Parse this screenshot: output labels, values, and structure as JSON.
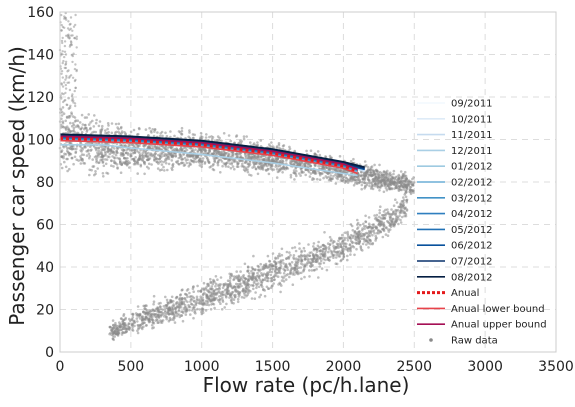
{
  "chart_data": {
    "type": "scatter",
    "title": "",
    "xlabel": "Flow rate (pc/h.lane)",
    "ylabel": "Passenger car speed (km/h)",
    "xlim": [
      0,
      3500
    ],
    "ylim": [
      0,
      160
    ],
    "xticks": [
      "0",
      "500",
      "1000",
      "1500",
      "2000",
      "2500",
      "3000",
      "3500"
    ],
    "yticks": [
      "0",
      "20",
      "40",
      "60",
      "80",
      "100",
      "120",
      "140",
      "160"
    ],
    "grid": true,
    "legend_position": "right",
    "series": [
      {
        "name": "09/2011",
        "kind": "line",
        "color": "#f2f8fd",
        "x": [
          0,
          500,
          1000,
          1500,
          2000,
          2150
        ],
        "y": [
          102,
          101,
          99,
          95,
          89,
          86
        ]
      },
      {
        "name": "10/2011",
        "kind": "line",
        "color": "#deebf7",
        "x": [
          0,
          500,
          1000,
          1500,
          2000,
          2150
        ],
        "y": [
          101.5,
          100.5,
          98.5,
          94.5,
          88.5,
          85.5
        ]
      },
      {
        "name": "11/2011",
        "kind": "line",
        "color": "#c6dbef",
        "x": [
          0,
          500,
          1000,
          1500,
          2000,
          2150
        ],
        "y": [
          101,
          100,
          98,
          94,
          88,
          85
        ]
      },
      {
        "name": "12/2011",
        "kind": "line",
        "color": "#a9cfe5",
        "x": [
          0,
          300,
          500,
          1000,
          1500,
          2000,
          2100
        ],
        "y": [
          97.5,
          97.5,
          96,
          93,
          89,
          84,
          83
        ]
      },
      {
        "name": "01/2012",
        "kind": "line",
        "color": "#9ecae1",
        "x": [
          0,
          500,
          1000,
          1500,
          2000,
          2100
        ],
        "y": [
          99.5,
          98.5,
          96.5,
          92.5,
          86.5,
          84.5
        ]
      },
      {
        "name": "02/2012",
        "kind": "line",
        "color": "#6baed6",
        "x": [
          0,
          500,
          1000,
          1500,
          2000,
          2100
        ],
        "y": [
          100,
          99,
          97,
          93,
          87,
          85
        ]
      },
      {
        "name": "03/2012",
        "kind": "line",
        "color": "#4292c6",
        "x": [
          0,
          500,
          1000,
          1500,
          2000,
          2100
        ],
        "y": [
          100.5,
          99.5,
          97.5,
          93.5,
          87.5,
          85.5
        ]
      },
      {
        "name": "04/2012",
        "kind": "line",
        "color": "#2f7fbf",
        "x": [
          0,
          500,
          1000,
          1500,
          2000,
          2100
        ],
        "y": [
          100.8,
          99.8,
          97.8,
          93.8,
          87.8,
          85.8
        ]
      },
      {
        "name": "05/2012",
        "kind": "line",
        "color": "#2171b5",
        "x": [
          0,
          500,
          1000,
          1500,
          2000,
          2150
        ],
        "y": [
          101,
          100,
          98,
          94,
          88,
          86
        ]
      },
      {
        "name": "06/2012",
        "kind": "line",
        "color": "#08519c",
        "x": [
          0,
          500,
          1000,
          1500,
          2000,
          2150
        ],
        "y": [
          101.5,
          100.5,
          98.5,
          94.5,
          88.5,
          86
        ]
      },
      {
        "name": "07/2012",
        "kind": "line",
        "color": "#08306b",
        "x": [
          0,
          500,
          1000,
          1500,
          2000,
          2150
        ],
        "y": [
          102,
          101,
          99,
          95,
          89,
          86.5
        ]
      },
      {
        "name": "08/2012",
        "kind": "line",
        "color": "#041e42",
        "x": [
          0,
          500,
          1000,
          1500,
          2000,
          2150
        ],
        "y": [
          102.5,
          101.5,
          99.5,
          95.5,
          89.5,
          87
        ]
      },
      {
        "name": "Anual",
        "kind": "dotted",
        "color": "#e41a1c",
        "x": [
          0,
          500,
          1000,
          1500,
          2000,
          2100
        ],
        "y": [
          100.5,
          99.5,
          97.5,
          93.5,
          87.5,
          85
        ]
      },
      {
        "name": "Anual lower bound",
        "kind": "line",
        "color": "#e8434a",
        "x": [
          0,
          500,
          1000,
          1500,
          2000,
          2100
        ],
        "y": [
          99.5,
          98.5,
          96.5,
          92.5,
          86.5,
          84
        ]
      },
      {
        "name": "Anual upper bound",
        "kind": "line",
        "color": "#a50f55",
        "x": [
          0,
          500,
          1000,
          1500,
          2000,
          2100
        ],
        "y": [
          101.5,
          100.5,
          98.5,
          94.5,
          88.5,
          86
        ]
      },
      {
        "name": "Raw data",
        "kind": "points",
        "color": "#8a8a8a"
      }
    ],
    "raw_data_envelope": {
      "free_flow": {
        "x": [
          0,
          200,
          500,
          1000,
          1500,
          2000,
          2300,
          2500
        ],
        "y_low": [
          80,
          80,
          82,
          84,
          82,
          78,
          74,
          72
        ],
        "y_high": [
          125,
          115,
          108,
          105,
          100,
          93,
          88,
          84
        ]
      },
      "congested": {
        "x": [
          350,
          600,
          1000,
          1500,
          2000,
          2300,
          2450
        ],
        "y_low": [
          5,
          8,
          15,
          27,
          40,
          52,
          62
        ],
        "y_high": [
          14,
          24,
          35,
          48,
          60,
          70,
          76
        ]
      }
    }
  }
}
